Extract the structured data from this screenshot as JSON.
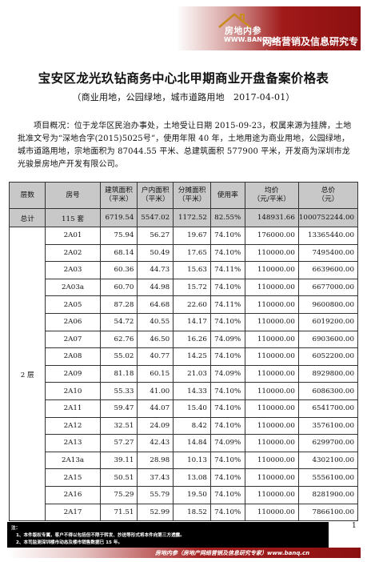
{
  "header": {
    "brand_title": "房地内参",
    "brand_url": "WWW.BANQ.cn",
    "slogan": "网络营销及信息研究专家"
  },
  "title": "宝安区龙光玖钻商务中心北甲期商业开盘备案价格表",
  "subtitle": "（商业用地，公园绿地，城市道路用地　2017-04-01）",
  "overview": "项目概况：位于龙华区民治办事处，土地受让日期 2015-09-23，权属来源为挂牌，土地批准文号为“深地合字(2015)5025号”，使用年限 40 年，土地用途为商业用地，公园绿地，城市道路用地，宗地面积为 87044.55 平米、总建筑面积 577900 平米，开发商为深圳市龙光骏景房地产开发有限公司。",
  "table": {
    "headers": [
      "层数",
      "房号",
      "建筑面积\n（平米）",
      "户内面积\n（平米）",
      "分摊面积\n（平米）",
      "使用率",
      "均价\n（元/平米）",
      "总价\n（元）"
    ],
    "total": {
      "label": "总计",
      "room": "115 套",
      "build": "6719.54",
      "inner": "5547.02",
      "shared": "1172.52",
      "rate": "82.55%",
      "avg": "148931.66",
      "sum": "1000752244.00"
    },
    "floor_label": "2 层",
    "rows": [
      {
        "room": "2A01",
        "build": "75.94",
        "inner": "56.27",
        "shared": "19.67",
        "rate": "74.10%",
        "avg": "176000.00",
        "sum": "13365440.00"
      },
      {
        "room": "2A02",
        "build": "68.14",
        "inner": "50.49",
        "shared": "17.65",
        "rate": "74.10%",
        "avg": "110000.00",
        "sum": "7495400.00"
      },
      {
        "room": "2A03",
        "build": "60.36",
        "inner": "44.73",
        "shared": "15.63",
        "rate": "74.11%",
        "avg": "110000.00",
        "sum": "6639600.00"
      },
      {
        "room": "2A03a",
        "build": "60.70",
        "inner": "44.98",
        "shared": "15.72",
        "rate": "74.10%",
        "avg": "110000.00",
        "sum": "6677000.00"
      },
      {
        "room": "2A05",
        "build": "87.28",
        "inner": "64.68",
        "shared": "22.60",
        "rate": "74.11%",
        "avg": "110000.00",
        "sum": "9600800.00"
      },
      {
        "room": "2A06",
        "build": "54.72",
        "inner": "40.55",
        "shared": "14.17",
        "rate": "74.10%",
        "avg": "110000.00",
        "sum": "6019200.00"
      },
      {
        "room": "2A07",
        "build": "62.76",
        "inner": "46.50",
        "shared": "16.26",
        "rate": "74.09%",
        "avg": "110000.00",
        "sum": "6903600.00"
      },
      {
        "room": "2A08",
        "build": "55.02",
        "inner": "40.77",
        "shared": "14.25",
        "rate": "74.10%",
        "avg": "110000.00",
        "sum": "6052200.00"
      },
      {
        "room": "2A09",
        "build": "81.18",
        "inner": "60.15",
        "shared": "21.03",
        "rate": "74.09%",
        "avg": "110000.00",
        "sum": "8929800.00"
      },
      {
        "room": "2A10",
        "build": "55.33",
        "inner": "41.00",
        "shared": "14.33",
        "rate": "74.10%",
        "avg": "110000.00",
        "sum": "6086300.00"
      },
      {
        "room": "2A11",
        "build": "59.47",
        "inner": "44.07",
        "shared": "15.40",
        "rate": "74.10%",
        "avg": "110000.00",
        "sum": "6541700.00"
      },
      {
        "room": "2A12",
        "build": "32.51",
        "inner": "24.09",
        "shared": "8.42",
        "rate": "74.10%",
        "avg": "110000.00",
        "sum": "3576100.00"
      },
      {
        "room": "2A13",
        "build": "57.27",
        "inner": "42.43",
        "shared": "14.84",
        "rate": "74.09%",
        "avg": "110000.00",
        "sum": "6299700.00"
      },
      {
        "room": "2A13a",
        "build": "39.11",
        "inner": "28.98",
        "shared": "10.13",
        "rate": "74.10%",
        "avg": "110000.00",
        "sum": "4302100.00"
      },
      {
        "room": "2A15",
        "build": "50.51",
        "inner": "37.43",
        "shared": "13.08",
        "rate": "74.10%",
        "avg": "110000.00",
        "sum": "5556100.00"
      },
      {
        "room": "2A16",
        "build": "75.29",
        "inner": "55.79",
        "shared": "19.50",
        "rate": "74.10%",
        "avg": "110000.00",
        "sum": "8281900.00"
      },
      {
        "room": "2A17",
        "build": "71.51",
        "inner": "52.99",
        "shared": "18.52",
        "rate": "74.10%",
        "avg": "110000.00",
        "sum": "7866100.00"
      }
    ]
  },
  "page_number": "1",
  "footer": {
    "note_title": "注：",
    "note1": "1、本件版权专属，客户不得以包括但不限于转发、抄送等形式将本件向第三方透露。",
    "note2": "2、本司监测深圳楼市动态及楼市销售数据已 15 年。",
    "bar_text": "房地内参（房地产网络营销及信息研究专家）www.banq.cn"
  }
}
